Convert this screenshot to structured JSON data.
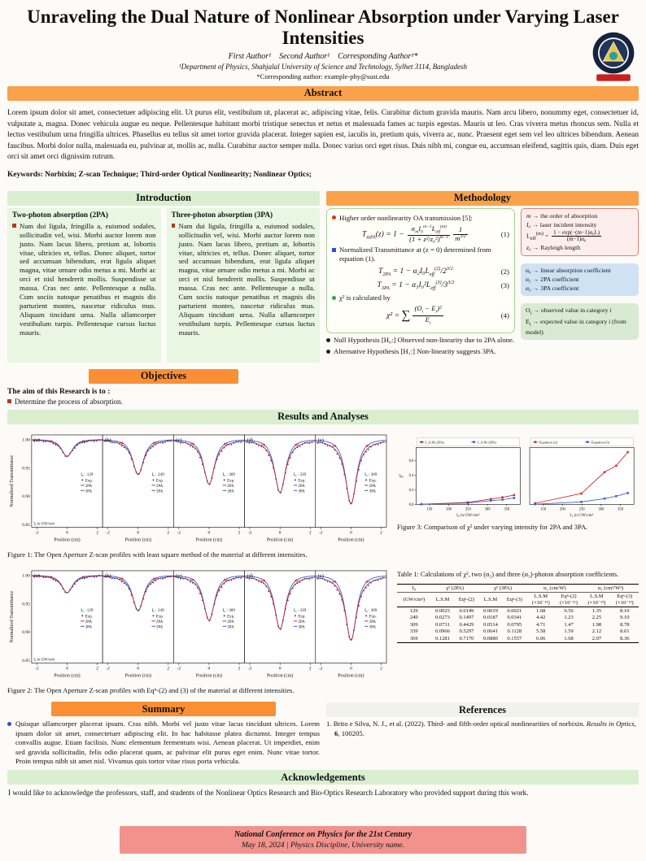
{
  "colors": {
    "orange_bar": "#f9a24b",
    "orange_bar_dark": "#fb8f35",
    "green_bar": "#d9efd0",
    "footer_bg": "#f2928c",
    "series_red": "#d62728",
    "series_blue": "#3b5bce",
    "exp_dot": "#2d4a8a"
  },
  "header": {
    "title": "Unraveling the Dual Nature of Nonlinear Absorption under Varying Laser Intensities",
    "authors": "First Author¹ Second Author¹ Corresponding Author¹*",
    "affiliation": "¹Department of Physics, Shahjalal University of Science and Technology, Sylhet 3114, Bangladesh",
    "corresponding": "*Corresponding author: example-phy@sust.edu"
  },
  "abstract": {
    "heading": "Abstract",
    "text": "Lorem ipsum dolor sit amet, consectetuer adipiscing elit. Ut purus elit, vestibulum ut, placerat ac, adipiscing vitae, felis. Curabitur dictum gravida mauris. Nam arcu libero, nonummy eget, consectetuer id, vulputate a, magna. Donec vehicula augue eu neque. Pellentesque habitant morbi tristique senectus et netus et malesuada fames ac turpis egestas. Mauris ut leo. Cras viverra metus rhoncus sem. Nulla et lectus vestibulum urna fringilla ultrices. Phasellus eu tellus sit amet tortor gravida placerat. Integer sapien est, iaculis in, pretium quis, viverra ac, nunc. Praesent eget sem vel leo ultrices bibendum. Aenean faucibus. Morbi dolor nulla, malesuada eu, pulvinar at, mollis ac, nulla. Curabitur auctor semper nulla. Donec varius orci eget risus. Duis nibh mi, congue eu, accumsan eleifend, sagittis quis, diam. Duis eget orci sit amet orci dignissim rutrum.",
    "keywords": "Keywords: Norbixin; Z-scan Technique; Third-order Optical Nonlinearity; Nonlinear Optics;"
  },
  "introduction": {
    "heading": "Introduction",
    "col_2pa": {
      "title": "Two-photon absorption (2PA)",
      "text": "Nam dui ligula, fringilla a, euismod sodales, sollicitudin vel, wisi. Morbi auctor lorem non justo. Nam lacus libero, pretium at, lobortis vitae, ultricies et, tellus. Donec aliquet, tortor sed accumsan bibendum, erat ligula aliquet magna, vitae ornare odio metus a mi. Morbi ac orci et nisl hendrerit mollis. Suspendisse ut massa. Cras nec ante. Pellentesque a nulla. Cum sociis natoque penatibus et magnis dis parturient montes, nascetur ridiculus mus. Aliquam tincidunt urna. Nulla ullamcorper vestibulum turpis. Pellentesque cursus luctus mauris."
    },
    "col_3pa": {
      "title": "Three-photon absorption (3PA)",
      "text": "Nam dui ligula, fringilla a, euismod sodales, sollicitudin vel, wisi. Morbi auctor lorem non justo. Nam lacus libero, pretium at, lobortis vitae, ultricies et, tellus. Donec aliquet, tortor sed accumsan bibendum, erat ligula aliquet magna, vitae ornare odio metus a mi. Morbi ac orci et nisl hendrerit mollis. Suspendisse ut massa. Cras nec ante. Pellentesque a nulla. Cum sociis natoque penatibus et magnis dis parturient montes, nascetur ridiculus mus. Aliquam tincidunt urna. Nulla ullamcorper vestibulum turpis. Pellentesque cursus luctus mauris."
    }
  },
  "objectives": {
    "heading": "Objectives",
    "lead": "The aim of this Research is to :",
    "item1": "Determine the process of absorption."
  },
  "methodology": {
    "heading": "Methodology",
    "bullet1": "Higher order nonlinearity OA transmission [5]:",
    "eq1_html": "T<sub>mPA</sub>(z) = 1 − <span class='frac'><span class='num'>α<sub>m</sub>I<sub>0</sub><sup>m−1</sup>L<sub>eff</sub><sup>(m)</sup></span><span class='den'>(1 + z²/z₀²)<sup>m−1</sup></span></span><span class='frac'><span class='num'>1</span><span class='den'>m<sup>3/2</sup></span></span>",
    "eq1_no": "(1)",
    "bullet2": "Normalized Transmittance at (z = 0) determined from equation (1).",
    "eq2_html": "T<sub>2PA</sub> = 1 − α₂I₀L<sub>eff</sub><sup>(2)</sup>/2<sup>3/2</sup>",
    "eq2_no": "(2)",
    "eq3_html": "T<sub>3PA</sub> = 1 − α₃I₀²L<sub>eff</sub><sup>(3)</sup>/3<sup>3/2</sup>",
    "eq3_no": "(3)",
    "bullet3": "χ² is calculated by",
    "eq4_html": "χ² = <span class='sum'>∑</span><span class='frac'><span class='num'>(O<sub>i</sub> − E<sub>i</sub>)²</span><span class='den'>E<sub>i</sub></span></span>",
    "eq4_no": "(4)",
    "bullet4": "Null Hypothesis [H₀:] Observed non-linearity due to 2PA alone.",
    "bullet5": "Alternative Hypothesis [H₁:] Non-linearity suggests 3PA.",
    "box1": {
      "l1_html": "<i>m</i> → the order of absorption",
      "l2_html": "<i>I₀</i> → laser incident intensity",
      "l3_html": "L<sub>eff</sub><sup>(m)</sup> = <span class='frac'><span class='num'>1 − exp(−(m−1)α₀L)</span><span class='den'>(m−1)α₀</span></span>",
      "l4_html": "<i>z₀</i> → Rayleigh length"
    },
    "box2": {
      "l1_html": "α₀ → linear absorption coefficient",
      "l2_html": "α₂ → 2PA coefficient",
      "l3_html": "α₃ → 3PA coefficient"
    },
    "box3": {
      "l1_html": "O<sub>i</sub> → observed value in category <i>i</i>",
      "l2_html": "E<sub>i</sub> → expected value in category <i>i</i> (from model)"
    }
  },
  "results": {
    "heading": "Results and Analyses",
    "fig1_caption": "Figure 1: The Open Aperture Z-scan profiles with least square method of the material at different intensities.",
    "fig2_caption": "Figure 2: The Open Aperture Z-scan profiles with Eqⁿ-(2) and (3) of the material at different intensities.",
    "fig3_caption": "Figure 3: Comparison of χ² under varying intensity for 2PA and 3PA."
  },
  "table1": {
    "caption": "Table 1: Calculations of χ², two (α₂) and three (α₃)-photon absorption coefficients.",
    "header_groups": [
      {
        "label": "I₀",
        "span": 1
      },
      {
        "label": "χ² (2PA)",
        "span": 2
      },
      {
        "label": "χ² (3PA)",
        "span": 2
      },
      {
        "label": "α₂ (cm/W)",
        "span": 2
      },
      {
        "label": "α₃ (cm³/W²)",
        "span": 2
      }
    ],
    "sub_headers": [
      "(GW/cm²)",
      "L.S.M",
      "Eqⁿ-(2)",
      "L.S.M",
      "Eqⁿ-(3)",
      "L.S.M\n(×10⁻¹¹)",
      "Eqⁿ-(2)\n(×10⁻¹¹)",
      "L.S.M\n(×10⁻¹³)",
      "Eqⁿ-(3)\n(×10⁻¹³)"
    ],
    "rows": [
      [
        "129",
        "0.0025",
        "0.0149",
        "0.0019",
        "0.0021",
        "1.08",
        "0.56",
        "1.35",
        "8.10"
      ],
      [
        "249",
        "0.0273",
        "0.1497",
        "0.0187",
        "0.0341",
        "4.42",
        "1.23",
        "2.25",
        "9.10"
      ],
      [
        "309",
        "0.0731",
        "0.4429",
        "0.0514",
        "0.0795",
        "4.71",
        "1.47",
        "1.98",
        "8.78"
      ],
      [
        "339",
        "0.0966",
        "0.5297",
        "0.0641",
        "0.1128",
        "5.58",
        "1.59",
        "2.12",
        "8.61"
      ],
      [
        "369",
        "0.1281",
        "0.7170",
        "0.0880",
        "0.1557",
        "6.06",
        "1.68",
        "2.07",
        "8.36"
      ]
    ]
  },
  "summary": {
    "heading": "Summary",
    "text": "Quisque ullamcorper placerat ipsum. Cras nibh. Morbi vel justo vitae lacus tincidunt ultrices. Lorem ipsum dolor sit amet, consectetuer adipiscing elit. In hac habitasse platea dictumst. Integer tempus convallis augue. Etiam facilisis. Nunc elementum fermentum wisi. Aenean placerat. Ut imperdiet, enim sed gravida sollicitudin, felis odio placerat quam, ac pulvinar elit purus eget enim. Nunc vitae tortor. Proin tempus nibh sit amet nisl. Vivamus quis tortor vitae risus porta vehicula."
  },
  "references": {
    "heading": "References",
    "item1_html": "1. Brito e Silva, N. J., et al. (2022). Third- and fifth-order optical nonlinearities of norbixin. <i>Results in Optics</i>, <b>6</b>, 100205."
  },
  "acknowledgements": {
    "heading": "Acknowledgements",
    "text": "I would like to acknowledge the professors, staff, and students of the Nonlinear Optics Research and Bio-Optics Research Laboratory who provided support during this work."
  },
  "footer": {
    "line1": "National Conference on Physics for the 21st Century",
    "line2": "May 18, 2024  |  Physics Discipline, University name."
  },
  "chart_data": [
    {
      "id": "fig1",
      "type": "line",
      "title": "Open Aperture Z-scan profiles (least square method)",
      "ylabel": "Normalized Transmittance",
      "xlabel": "Position (cm)",
      "ylim": [
        0.845,
        1.008
      ],
      "yticks": [
        1.0,
        0.95,
        0.9,
        0.85
      ],
      "xticks": [
        -2,
        0,
        2
      ],
      "legend": [
        "Exp.",
        "2PA",
        "3PA"
      ],
      "intensity_prefix": "I₀ :",
      "intensity_unit_label": "I₀ in GW/cm²",
      "panels": [
        {
          "label": "(a)",
          "intensity": 129,
          "min_T": 0.97
        },
        {
          "label": "(b)",
          "intensity": 249,
          "min_T": 0.938
        },
        {
          "label": "(c)",
          "intensity": 309,
          "min_T": 0.921
        },
        {
          "label": "(d)",
          "intensity": 339,
          "min_T": 0.906
        },
        {
          "label": "(e)",
          "intensity": 369,
          "min_T": 0.886
        }
      ]
    },
    {
      "id": "fig2",
      "type": "line",
      "title": "Open Aperture Z-scan profiles (Eq.-(2) and (3))",
      "ylabel": "Normalized Transmittance",
      "xlabel": "Position (cm)",
      "ylim": [
        0.845,
        1.008
      ],
      "yticks": [
        1.0,
        0.95,
        0.9,
        0.85
      ],
      "xticks": [
        -2,
        0,
        2
      ],
      "legend": [
        "Exp.",
        "2PA",
        "3PA"
      ],
      "intensity_prefix": "I₀ :",
      "intensity_unit_label": "I₀ in GW/cm²",
      "panels": [
        {
          "label": "(a)",
          "intensity": 129,
          "min_T": 0.969
        },
        {
          "label": "(b)",
          "intensity": 249,
          "min_T": 0.937
        },
        {
          "label": "(c)",
          "intensity": 309,
          "min_T": 0.92
        },
        {
          "label": "(d)",
          "intensity": 339,
          "min_T": 0.905
        },
        {
          "label": "(e)",
          "intensity": 369,
          "min_T": 0.885
        }
      ]
    },
    {
      "id": "fig3",
      "type": "line",
      "title": "Comparison of χ² under varying intensity",
      "ylabel": "χ²",
      "xlabel": "I₀ in GW/cm²",
      "x": [
        129,
        249,
        309,
        339,
        369
      ],
      "xticks": [
        150,
        200,
        250,
        300,
        350
      ],
      "yticks": [
        0.0,
        0.2,
        0.4,
        0.6
      ],
      "ylim": [
        0,
        0.78
      ],
      "panels": [
        {
          "series": [
            {
              "name": "L.S.M (2PA)",
              "color_key": "series_red",
              "values": [
                0.0025,
                0.0273,
                0.0731,
                0.0966,
                0.1281
              ]
            },
            {
              "name": "L.S.M (3PA)",
              "color_key": "series_blue",
              "values": [
                0.0019,
                0.0187,
                0.0514,
                0.0641,
                0.088
              ]
            }
          ]
        },
        {
          "series": [
            {
              "name": "Equation (2)",
              "color_key": "series_red",
              "values": [
                0.0149,
                0.1497,
                0.4429,
                0.5297,
                0.717
              ]
            },
            {
              "name": "Equation (3)",
              "color_key": "series_blue",
              "values": [
                0.0021,
                0.0341,
                0.0795,
                0.1128,
                0.1557
              ]
            }
          ]
        }
      ]
    }
  ]
}
